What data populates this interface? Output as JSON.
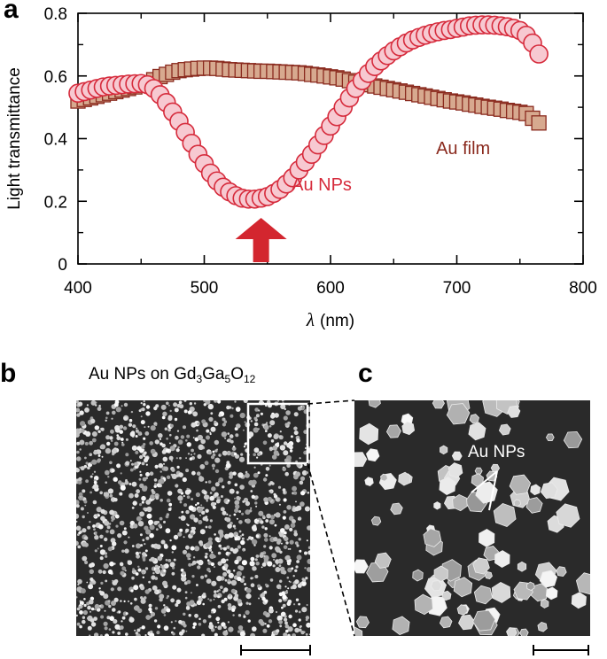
{
  "panels": {
    "a": "a",
    "b": "b",
    "c": "c"
  },
  "chart_data": {
    "type": "scatter",
    "xlabel_symbol": "λ",
    "xlabel_unit": "(nm)",
    "ylabel": "Light transmittance",
    "xlim": [
      400,
      800
    ],
    "ylim": [
      0,
      0.8
    ],
    "xticks": [
      400,
      500,
      600,
      700,
      800
    ],
    "yticks": [
      0,
      0.2,
      0.4,
      0.6,
      0.8
    ],
    "ytick_labels": [
      "0",
      "0.2",
      "0.4",
      "0.6",
      "0.8"
    ],
    "annotation_arrow_x": 545,
    "series": [
      {
        "name": "Au NPs",
        "marker": "circle",
        "stroke": "#d62b3c",
        "fill": "#f7c9d1",
        "x": [
          400,
          405,
          410,
          415,
          420,
          425,
          430,
          435,
          440,
          445,
          450,
          455,
          460,
          465,
          470,
          475,
          480,
          485,
          490,
          495,
          500,
          505,
          510,
          515,
          520,
          525,
          530,
          535,
          540,
          545,
          550,
          555,
          560,
          565,
          570,
          575,
          580,
          585,
          590,
          595,
          600,
          605,
          610,
          615,
          620,
          625,
          630,
          635,
          640,
          645,
          650,
          655,
          660,
          665,
          670,
          675,
          680,
          685,
          690,
          695,
          700,
          705,
          710,
          715,
          720,
          725,
          730,
          735,
          740,
          745,
          750,
          755,
          760,
          765
        ],
        "y": [
          0.545,
          0.55,
          0.555,
          0.56,
          0.565,
          0.568,
          0.57,
          0.572,
          0.574,
          0.575,
          0.576,
          0.572,
          0.56,
          0.54,
          0.515,
          0.485,
          0.455,
          0.42,
          0.385,
          0.35,
          0.32,
          0.29,
          0.265,
          0.245,
          0.23,
          0.218,
          0.21,
          0.207,
          0.207,
          0.21,
          0.215,
          0.225,
          0.238,
          0.255,
          0.275,
          0.3,
          0.325,
          0.35,
          0.38,
          0.41,
          0.44,
          0.47,
          0.5,
          0.53,
          0.56,
          0.585,
          0.608,
          0.63,
          0.648,
          0.665,
          0.68,
          0.693,
          0.705,
          0.715,
          0.723,
          0.73,
          0.736,
          0.741,
          0.745,
          0.748,
          0.752,
          0.756,
          0.76,
          0.762,
          0.763,
          0.763,
          0.762,
          0.76,
          0.757,
          0.752,
          0.745,
          0.73,
          0.705,
          0.67
        ]
      },
      {
        "name": "Au film",
        "marker": "square",
        "stroke": "#8a2a1e",
        "fill": "#d7a98f",
        "x": [
          400,
          405,
          410,
          415,
          420,
          425,
          430,
          435,
          440,
          445,
          450,
          455,
          460,
          465,
          470,
          475,
          480,
          485,
          490,
          495,
          500,
          505,
          510,
          515,
          520,
          525,
          530,
          535,
          540,
          545,
          550,
          555,
          560,
          565,
          570,
          575,
          580,
          585,
          590,
          595,
          600,
          605,
          610,
          615,
          620,
          625,
          630,
          635,
          640,
          645,
          650,
          655,
          660,
          665,
          670,
          675,
          680,
          685,
          690,
          695,
          700,
          705,
          710,
          715,
          720,
          725,
          730,
          735,
          740,
          745,
          750,
          755,
          760,
          765
        ],
        "y": [
          0.52,
          0.525,
          0.53,
          0.535,
          0.54,
          0.545,
          0.55,
          0.555,
          0.56,
          0.565,
          0.57,
          0.578,
          0.588,
          0.598,
          0.605,
          0.612,
          0.617,
          0.62,
          0.622,
          0.624,
          0.625,
          0.625,
          0.624,
          0.622,
          0.62,
          0.619,
          0.618,
          0.617,
          0.616,
          0.615,
          0.615,
          0.614,
          0.613,
          0.612,
          0.611,
          0.61,
          0.608,
          0.605,
          0.603,
          0.6,
          0.597,
          0.594,
          0.59,
          0.585,
          0.58,
          0.576,
          0.572,
          0.568,
          0.564,
          0.56,
          0.556,
          0.552,
          0.548,
          0.544,
          0.54,
          0.536,
          0.532,
          0.528,
          0.524,
          0.52,
          0.517,
          0.514,
          0.51,
          0.507,
          0.503,
          0.5,
          0.497,
          0.494,
          0.49,
          0.487,
          0.484,
          0.48,
          0.465,
          0.45
        ]
      }
    ],
    "annotations": [
      "Au NPs",
      "Au film"
    ]
  },
  "image_b": {
    "caption_prefix": "Au NPs on Gd",
    "sub1": "3",
    "mid1": "Ga",
    "sub2": "5",
    "mid2": "O",
    "sub3": "12"
  },
  "image_c": {
    "label": "Au NPs"
  },
  "colors": {
    "np_stroke": "#d62b3c",
    "np_fill": "#f7c9d1",
    "film_stroke": "#8a2a1e",
    "film_fill": "#d7a98f",
    "arrow": "#d3262f",
    "np_text": "#d62b3c",
    "film_text": "#8a2a1e"
  }
}
